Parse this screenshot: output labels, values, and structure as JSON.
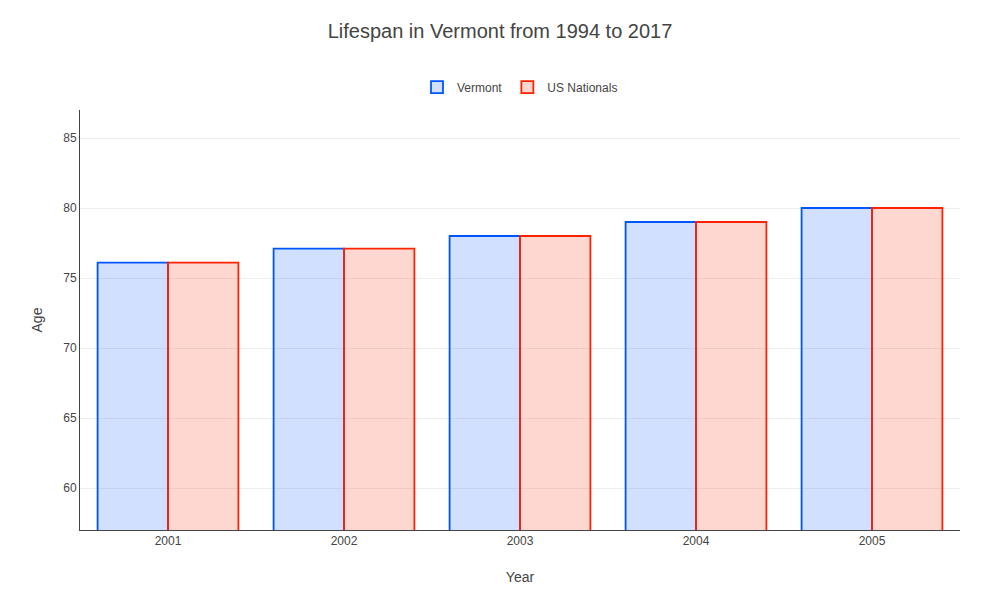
{
  "chart_data": {
    "type": "bar",
    "title": "Lifespan in Vermont from 1994 to 2017",
    "xlabel": "Year",
    "ylabel": "Age",
    "categories": [
      "2001",
      "2002",
      "2003",
      "2004",
      "2005"
    ],
    "series": [
      {
        "name": "Vermont",
        "color": "#0055ff",
        "values": [
          76.1,
          77.1,
          78.0,
          79.0,
          80.0
        ]
      },
      {
        "name": "US Nationals",
        "color": "#ff2200",
        "values": [
          76.1,
          77.1,
          78.0,
          79.0,
          80.0
        ]
      }
    ],
    "ylim": [
      57,
      87
    ],
    "yticks": [
      60,
      65,
      70,
      75,
      80,
      85
    ],
    "grid": true,
    "legend": "top"
  }
}
